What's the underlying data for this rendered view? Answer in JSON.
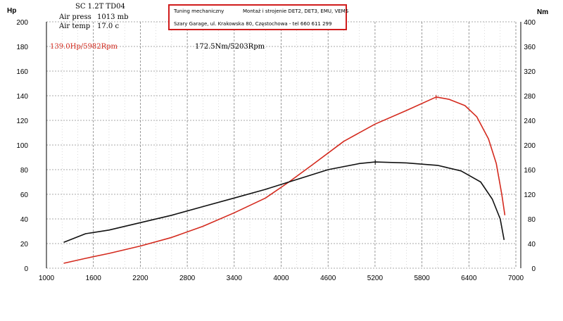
{
  "header": {
    "vehicle": "SC 1.2T TD04",
    "air_press_label": "Air press",
    "air_press_value": "1013 mb",
    "air_temp_label": "Air temp",
    "air_temp_value": "17.0 c"
  },
  "shop": {
    "name": "Tuning mechaniczny",
    "services": "Montaż i strojenie DET2, DET3, EMU, VEMS",
    "address": "Szary Garage, ul. Krakowska 80, Częstochowa - tel 660 611 299",
    "border_color": "#d01c1c"
  },
  "chart_data": {
    "type": "line",
    "x_unit": "rpm",
    "x_ticks": [
      1000,
      1600,
      2200,
      2800,
      3400,
      4000,
      4600,
      5200,
      5800,
      6400,
      7000
    ],
    "xlim": [
      1000,
      7000
    ],
    "left_axis": {
      "label": "Hp",
      "ticks": [
        0,
        20,
        40,
        60,
        80,
        100,
        120,
        140,
        160,
        180,
        200
      ],
      "ylim": [
        0,
        200
      ]
    },
    "right_axis": {
      "label": "Nm",
      "ticks": [
        0,
        40,
        80,
        120,
        160,
        200,
        240,
        280,
        320,
        360,
        400
      ],
      "ylim": [
        0,
        400
      ]
    },
    "grid": true,
    "series": [
      {
        "key": "power",
        "axis": "left",
        "color": "#d42a1e",
        "peak_label": "139.0Hp/5982Rpm",
        "peak_rpm": 5982,
        "peak_value": 139.0,
        "points": [
          [
            1220,
            4
          ],
          [
            1500,
            8
          ],
          [
            1800,
            12
          ],
          [
            2200,
            18
          ],
          [
            2600,
            25
          ],
          [
            3000,
            34
          ],
          [
            3400,
            45
          ],
          [
            3800,
            57
          ],
          [
            4100,
            70
          ],
          [
            4400,
            84
          ],
          [
            4800,
            103
          ],
          [
            5200,
            117
          ],
          [
            5600,
            128
          ],
          [
            5982,
            139
          ],
          [
            6150,
            137
          ],
          [
            6350,
            132
          ],
          [
            6500,
            123
          ],
          [
            6650,
            105
          ],
          [
            6750,
            85
          ],
          [
            6820,
            60
          ],
          [
            6860,
            43
          ]
        ]
      },
      {
        "key": "torque",
        "axis": "right",
        "color": "#111111",
        "peak_label": "172.5Nm/5203Rpm",
        "peak_rpm": 5203,
        "peak_value": 172.5,
        "points": [
          [
            1220,
            42
          ],
          [
            1500,
            56
          ],
          [
            1800,
            62
          ],
          [
            2200,
            74
          ],
          [
            2600,
            86
          ],
          [
            3000,
            100
          ],
          [
            3400,
            114
          ],
          [
            3800,
            128
          ],
          [
            4200,
            144
          ],
          [
            4600,
            160
          ],
          [
            5000,
            170
          ],
          [
            5203,
            172.5
          ],
          [
            5600,
            171
          ],
          [
            6000,
            167
          ],
          [
            6300,
            158
          ],
          [
            6550,
            140
          ],
          [
            6700,
            112
          ],
          [
            6800,
            80
          ],
          [
            6850,
            46
          ]
        ]
      }
    ]
  }
}
